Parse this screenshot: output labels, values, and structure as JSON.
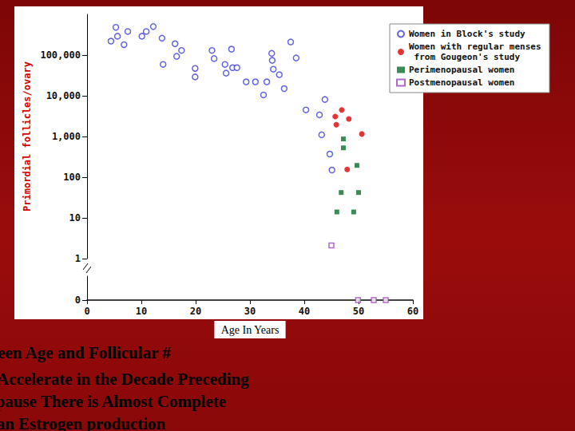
{
  "chart_data": [
    {
      "type": "scatter",
      "title": "The Relation Between Age and Follicular #",
      "subtitle": "Follicle Depletion Appears to Accelerate in the Decade Preceding\nMenopause – In the Menopause There is Almost Complete\nCesation of Ovarian Estrogen production",
      "ylabel": "Primordial follicles/ovary",
      "log": "y",
      "grid": false,
      "legend": "upper right",
      "tick_labels": "y",
      "xlim": [
        0,
        60
      ],
      "xticks": [
        0,
        10,
        20,
        30,
        40,
        50,
        60
      ],
      "ylim": [
        1,
        1000000
      ],
      "yticks": [
        1,
        10,
        100,
        {
          "value": 1000,
          "label": "1,000"
        },
        {
          "value": 10000,
          "label": "10,000"
        },
        {
          "value": 100000,
          "label": "100,000"
        }
      ],
      "series": [
        {
          "name": "Women in Block's study",
          "color": "#3c3cdc",
          "marker": "circle-open",
          "x": [
            4.4,
            5.3,
            5.6,
            6.8,
            7.5,
            10.1,
            10.9,
            12.2,
            13.8,
            14.0,
            16.2,
            16.5,
            17.4,
            19.9,
            19.9,
            23.0,
            23.4,
            25.4,
            25.6,
            26.6,
            26.8,
            27.6,
            29.3,
            31.0,
            32.5,
            33.1,
            34.0,
            34.1,
            34.3,
            35.4,
            36.3,
            37.5,
            38.5,
            40.3,
            42.8,
            43.8,
            43.2,
            44.7,
            45.1
          ],
          "values": [
            220000,
            480000,
            290000,
            180000,
            380000,
            290000,
            380000,
            500000,
            260000,
            59000,
            190000,
            93000,
            130000,
            47000,
            29000,
            130000,
            82000,
            59000,
            36000,
            140000,
            49000,
            49000,
            22000,
            22000,
            10500,
            22000,
            110000,
            74000,
            45000,
            33000,
            15000,
            210000,
            85000,
            4500,
            3400,
            8100,
            1100,
            370,
            150
          ]
        },
        {
          "name": "Women with regular menses from Gougeon's study",
          "color": "#e00000",
          "marker": "circle",
          "x": [
            45.7,
            46.9,
            48.2,
            45.9,
            50.6,
            47.9
          ],
          "values": [
            3100,
            4500,
            2700,
            1950,
            1150,
            155
          ]
        },
        {
          "name": "Perimenopausal women",
          "color": "#0b6e2c",
          "marker": "square",
          "x": [
            47.2,
            47.2,
            49.7,
            46.8,
            50.0,
            46.0,
            49.1
          ],
          "values": [
            870,
            525,
            195,
            42,
            42,
            14,
            14
          ]
        },
        {
          "name": "Postmenopausal women",
          "color": "#a040c0",
          "marker": "square-open",
          "x": [
            45.0
          ],
          "values": [
            2.1
          ]
        }
      ]
    },
    {
      "type": "scatter",
      "xlabel": "Age In Years",
      "grid": false,
      "xlim": [
        0,
        60
      ],
      "xticks": [
        0,
        10,
        20,
        30,
        40,
        50,
        60
      ],
      "ylim": [
        0,
        1
      ],
      "yticks": [
        0
      ],
      "series": [
        {
          "name": "Postmenopausal women",
          "color": "#a040c0",
          "marker": "square-open",
          "x": [
            49.9,
            52.8,
            55.0
          ],
          "values": [
            0,
            0,
            0
          ]
        }
      ]
    }
  ]
}
